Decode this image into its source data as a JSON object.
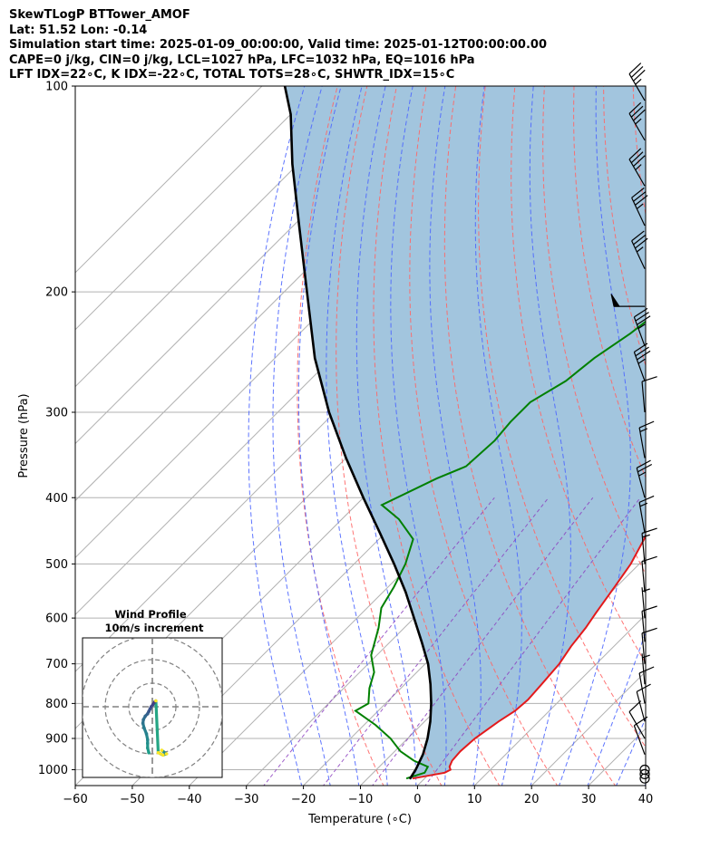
{
  "header": {
    "line1": "SkewTLogP BTTower_AMOF",
    "line2": "Lat: 51.52   Lon: -0.14",
    "line3": "Simulation start time: 2025-01-09_00:00:00, Valid time: 2025-01-12T00:00:00.00",
    "line4": "CAPE=0 j/kg, CIN=0 j/kg, LCL=1027 hPa, LFC=1032 hPa, EQ=1016 hPa",
    "line5": "LFT IDX=22∘C, K IDX=-22∘C, TOTAL TOTS=28∘C, SHWTR_IDX=15∘C"
  },
  "chart_data": [
    {
      "type": "line",
      "subtype": "skew-T log-P diagram",
      "xlabel": "Temperature (∘C)",
      "ylabel": "Pressure (hPa)",
      "x_range": [
        -60,
        40
      ],
      "y_range": [
        1040,
        100
      ],
      "y_scale": "log",
      "x_ticks": [
        "−60",
        "−50",
        "−40",
        "−30",
        "−20",
        "−10",
        "0",
        "10",
        "20",
        "30",
        "40"
      ],
      "x_tick_values": [
        -60,
        -50,
        -40,
        -30,
        -20,
        -10,
        0,
        10,
        20,
        30,
        40
      ],
      "y_ticks": [
        "100",
        "200",
        "300",
        "400",
        "500",
        "600",
        "700",
        "800",
        "900",
        "1000"
      ],
      "y_tick_values": [
        100,
        200,
        300,
        400,
        500,
        600,
        700,
        800,
        900,
        1000
      ],
      "grid": true,
      "colors": {
        "temperature": "#e31a1c",
        "dewpoint": "#008000",
        "parcel": "#000000",
        "shading": "#a2c5de",
        "dry_adiabats": "#ff6666",
        "moist_adiabats": "#4d66ff",
        "mixing_ratio": "#8c3fbf",
        "isotherms": "#b0b0b0"
      },
      "series": [
        {
          "key": "temperature",
          "points": [
            [
              -2.1,
              1030
            ],
            [
              2.5,
              1010
            ],
            [
              3.0,
              1000
            ],
            [
              2.3,
              990
            ],
            [
              1.7,
              970
            ],
            [
              1.5,
              940
            ],
            [
              1.8,
              900
            ],
            [
              3.0,
              850
            ],
            [
              4.0,
              820
            ],
            [
              4.3,
              790
            ],
            [
              4.0,
              750
            ],
            [
              3.5,
              700
            ],
            [
              2.5,
              660
            ],
            [
              1.8,
              620
            ],
            [
              1.0,
              590
            ],
            [
              -0.3,
              540
            ],
            [
              -1.5,
              500
            ],
            [
              -3.5,
              460
            ],
            [
              -5.5,
              430
            ],
            [
              -7.0,
              400
            ],
            [
              -9.5,
              370
            ],
            [
              -12.0,
              340
            ],
            [
              -14.5,
              310
            ],
            [
              -16.5,
              290
            ],
            [
              -18.5,
              270
            ],
            [
              -20.5,
              250
            ],
            [
              -23.0,
              220
            ],
            [
              -24.5,
              200
            ],
            [
              -27.0,
              185
            ],
            [
              -29.5,
              170
            ],
            [
              -31.5,
              155
            ],
            [
              -33.5,
              145
            ],
            [
              -36.0,
              135
            ],
            [
              -38.5,
              125
            ],
            [
              -41.5,
              115
            ],
            [
              -43.0,
              110
            ],
            [
              -43.5,
              105
            ],
            [
              -45.0,
              100
            ]
          ]
        },
        {
          "key": "dewpoint",
          "points": [
            [
              -3.2,
              1030
            ],
            [
              -1.0,
              1010
            ],
            [
              -1.5,
              990
            ],
            [
              -5.0,
              970
            ],
            [
              -9.0,
              940
            ],
            [
              -13.0,
              900
            ],
            [
              -18.0,
              860
            ],
            [
              -24.0,
              820
            ],
            [
              -23.0,
              800
            ],
            [
              -25.5,
              760
            ],
            [
              -27.5,
              720
            ],
            [
              -31.0,
              680
            ],
            [
              -34.5,
              620
            ],
            [
              -37.5,
              580
            ],
            [
              -39.0,
              540
            ],
            [
              -41.0,
              500
            ],
            [
              -44.0,
              460
            ],
            [
              -50.0,
              430
            ],
            [
              -55.5,
              410
            ],
            [
              -50.5,
              375
            ],
            [
              -47.5,
              360
            ],
            [
              -47.0,
              330
            ],
            [
              -47.5,
              310
            ],
            [
              -47.5,
              290
            ],
            [
              -45.0,
              270
            ],
            [
              -44.0,
              250
            ],
            [
              -42.0,
              230
            ],
            [
              -41.0,
              215
            ],
            [
              -42.5,
              200
            ],
            [
              -45.0,
              190
            ],
            [
              -47.0,
              180
            ],
            [
              -47.5,
              170
            ],
            [
              -47.0,
              160
            ],
            [
              -47.5,
              150
            ],
            [
              -48.0,
              140
            ],
            [
              -48.5,
              130
            ],
            [
              -49.0,
              120
            ],
            [
              -49.5,
              110
            ],
            [
              -50.0,
              100
            ]
          ]
        },
        {
          "key": "parcel",
          "points": [
            [
              -2.5,
              1032
            ],
            [
              -3.1,
              1000
            ],
            [
              -4.5,
              950
            ],
            [
              -6.5,
              900
            ],
            [
              -9.0,
              850
            ],
            [
              -12.0,
              800
            ],
            [
              -15.5,
              750
            ],
            [
              -19.5,
              700
            ],
            [
              -24.5,
              650
            ],
            [
              -30.0,
              600
            ],
            [
              -36.0,
              550
            ],
            [
              -43.0,
              500
            ],
            [
              -51.0,
              450
            ],
            [
              -60.0,
              400
            ],
            [
              -70.0,
              350
            ],
            [
              -81.0,
              300
            ],
            [
              -93.0,
              250
            ],
            [
              -106.0,
              200
            ],
            [
              -119.0,
              160
            ],
            [
              -131.0,
              130
            ],
            [
              -140.0,
              110
            ],
            [
              -146.0,
              100
            ]
          ]
        }
      ],
      "dry_adiabats_theta_c": [
        -10,
        0,
        10,
        20,
        30,
        40,
        50,
        60,
        70,
        80,
        90,
        100,
        110,
        120,
        130,
        140,
        150
      ],
      "moist_adiabats_start_c": [
        -20,
        -15,
        -10,
        -5,
        0,
        5,
        10,
        15,
        20,
        25,
        30,
        35,
        40
      ],
      "mixing_ratio_g_per_kg": [
        0.4,
        1,
        2,
        4
      ],
      "isotherms_step_c": 10,
      "wind_barbs": [
        {
          "p": 1030,
          "speed_kt": 0,
          "dir_deg": 0
        },
        {
          "p": 1015,
          "speed_kt": 0,
          "dir_deg": 0
        },
        {
          "p": 1000,
          "speed_kt": 0,
          "dir_deg": 0
        },
        {
          "p": 950,
          "speed_kt": 10,
          "dir_deg": 340
        },
        {
          "p": 900,
          "speed_kt": 10,
          "dir_deg": 330
        },
        {
          "p": 850,
          "speed_kt": 10,
          "dir_deg": 345
        },
        {
          "p": 800,
          "speed_kt": 10,
          "dir_deg": 350
        },
        {
          "p": 750,
          "speed_kt": 5,
          "dir_deg": 355
        },
        {
          "p": 700,
          "speed_kt": 10,
          "dir_deg": 355
        },
        {
          "p": 650,
          "speed_kt": 10,
          "dir_deg": 355
        },
        {
          "p": 600,
          "speed_kt": 5,
          "dir_deg": 355
        },
        {
          "p": 550,
          "speed_kt": 10,
          "dir_deg": 355
        },
        {
          "p": 500,
          "speed_kt": 15,
          "dir_deg": 355
        },
        {
          "p": 450,
          "speed_kt": 15,
          "dir_deg": 350
        },
        {
          "p": 400,
          "speed_kt": 25,
          "dir_deg": 345
        },
        {
          "p": 350,
          "speed_kt": 15,
          "dir_deg": 350
        },
        {
          "p": 300,
          "speed_kt": 10,
          "dir_deg": 355
        },
        {
          "p": 270,
          "speed_kt": 35,
          "dir_deg": 340
        },
        {
          "p": 240,
          "speed_kt": 35,
          "dir_deg": 340
        },
        {
          "p": 210,
          "speed_kt": 50,
          "dir_deg": 270
        },
        {
          "p": 185,
          "speed_kt": 35,
          "dir_deg": 335
        },
        {
          "p": 160,
          "speed_kt": 35,
          "dir_deg": 335
        },
        {
          "p": 140,
          "speed_kt": 35,
          "dir_deg": 330
        },
        {
          "p": 120,
          "speed_kt": 35,
          "dir_deg": 330
        },
        {
          "p": 105,
          "speed_kt": 35,
          "dir_deg": 330
        }
      ]
    },
    {
      "type": "scatter",
      "subtype": "hodograph",
      "title": "Wind Profile",
      "subtitle": "10m/s increment",
      "ring_step_ms": 10,
      "ring_count": 3,
      "colormap": "viridis",
      "points": [
        [
          -1.5,
          -19.5
        ],
        [
          -2.0,
          -17.5
        ],
        [
          -2.0,
          -15.5
        ],
        [
          -2.0,
          -14.0
        ],
        [
          -2.5,
          -11.5
        ],
        [
          -3.5,
          -9.0
        ],
        [
          -4.0,
          -7.0
        ],
        [
          -3.8,
          -5.5
        ],
        [
          -3.0,
          -4.0
        ],
        [
          -2.0,
          -3.0
        ],
        [
          -1.5,
          -2.0
        ],
        [
          -1.0,
          -1.0
        ],
        [
          -0.5,
          0.0
        ],
        [
          0.3,
          1.0
        ],
        [
          1.0,
          2.0
        ],
        [
          1.5,
          2.5
        ],
        [
          2.5,
          -19.5
        ],
        [
          3.5,
          -20.0
        ],
        [
          4.5,
          -20.5
        ],
        [
          6.0,
          -20.0
        ],
        [
          4.0,
          -18.5
        ]
      ]
    }
  ]
}
